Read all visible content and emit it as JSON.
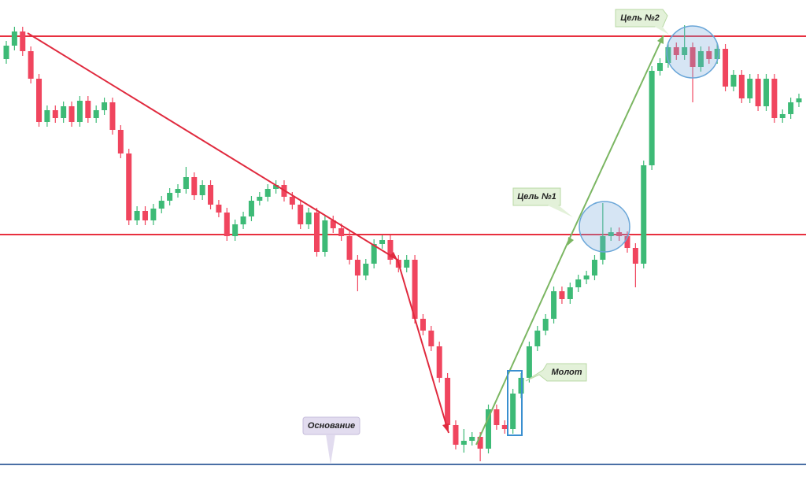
{
  "chart_data": {
    "type": "candlestick",
    "ylim": [
      0,
      560
    ],
    "up_color": "#3dba76",
    "down_color": "#f0455e",
    "open": [
      515,
      532,
      550,
      525,
      490,
      435,
      450,
      440,
      455,
      435,
      462,
      440,
      450,
      460,
      425,
      395,
      310,
      322,
      310,
      325,
      335,
      345,
      350,
      365,
      342,
      355,
      330,
      320,
      290,
      305,
      315,
      335,
      340,
      350,
      355,
      340,
      330,
      305,
      320,
      270,
      310,
      300,
      290,
      260,
      240,
      255,
      280,
      285,
      260,
      250,
      260,
      185,
      170,
      150,
      110,
      50,
      25,
      30,
      35,
      20,
      70,
      50,
      45,
      90,
      110,
      150,
      170,
      185,
      220,
      210,
      225,
      235,
      240,
      260,
      290,
      295,
      290,
      275,
      255,
      380,
      500,
      510,
      530,
      520,
      530,
      505,
      525,
      515,
      528,
      480,
      495,
      465,
      490,
      455,
      490,
      440,
      445,
      460
    ],
    "high": [
      538,
      556,
      556,
      531,
      496,
      456,
      456,
      461,
      461,
      468,
      468,
      456,
      466,
      466,
      431,
      401,
      328,
      328,
      331,
      341,
      351,
      356,
      378,
      371,
      361,
      361,
      336,
      326,
      311,
      321,
      341,
      346,
      356,
      361,
      361,
      346,
      336,
      326,
      326,
      316,
      316,
      306,
      296,
      266,
      261,
      286,
      291,
      291,
      266,
      266,
      266,
      191,
      176,
      156,
      116,
      56,
      45,
      41,
      41,
      76,
      76,
      56,
      96,
      116,
      156,
      176,
      191,
      226,
      226,
      231,
      241,
      246,
      266,
      332,
      301,
      301,
      296,
      281,
      386,
      506,
      516,
      536,
      536,
      558,
      536,
      531,
      531,
      534,
      534,
      501,
      501,
      496,
      496,
      496,
      496,
      451,
      466,
      471
    ],
    "low": [
      509,
      526,
      519,
      484,
      429,
      429,
      434,
      434,
      429,
      429,
      434,
      434,
      444,
      419,
      389,
      304,
      304,
      304,
      304,
      319,
      329,
      339,
      344,
      336,
      336,
      324,
      314,
      284,
      284,
      299,
      309,
      329,
      334,
      344,
      334,
      324,
      299,
      299,
      264,
      264,
      294,
      284,
      254,
      220,
      234,
      249,
      274,
      254,
      244,
      244,
      179,
      164,
      144,
      104,
      44,
      19,
      15,
      24,
      4,
      14,
      44,
      39,
      39,
      84,
      104,
      144,
      164,
      179,
      204,
      204,
      219,
      229,
      234,
      254,
      284,
      284,
      269,
      225,
      249,
      374,
      494,
      504,
      514,
      514,
      460,
      499,
      509,
      509,
      474,
      474,
      459,
      459,
      449,
      449,
      434,
      434,
      439,
      454
    ],
    "close": [
      532,
      550,
      525,
      490,
      435,
      450,
      440,
      455,
      435,
      462,
      440,
      450,
      460,
      425,
      395,
      310,
      322,
      310,
      325,
      335,
      345,
      350,
      365,
      342,
      355,
      330,
      320,
      290,
      305,
      315,
      335,
      340,
      350,
      355,
      340,
      330,
      305,
      320,
      270,
      310,
      300,
      290,
      260,
      240,
      255,
      280,
      285,
      260,
      250,
      260,
      185,
      170,
      150,
      110,
      50,
      25,
      30,
      35,
      20,
      70,
      50,
      45,
      90,
      110,
      150,
      170,
      185,
      220,
      210,
      225,
      235,
      240,
      260,
      290,
      295,
      290,
      275,
      255,
      380,
      500,
      510,
      530,
      520,
      530,
      505,
      525,
      515,
      528,
      480,
      495,
      465,
      490,
      455,
      490,
      440,
      445,
      460,
      465
    ],
    "levels": [
      {
        "value": 544,
        "color": "#e8303f"
      },
      {
        "value": 292,
        "color": "#e8303f"
      },
      {
        "value": 0,
        "color": "#4a6fa5"
      }
    ],
    "annotations": [
      "Цель №2",
      "Цель №1",
      "Молот",
      "Основание"
    ]
  }
}
